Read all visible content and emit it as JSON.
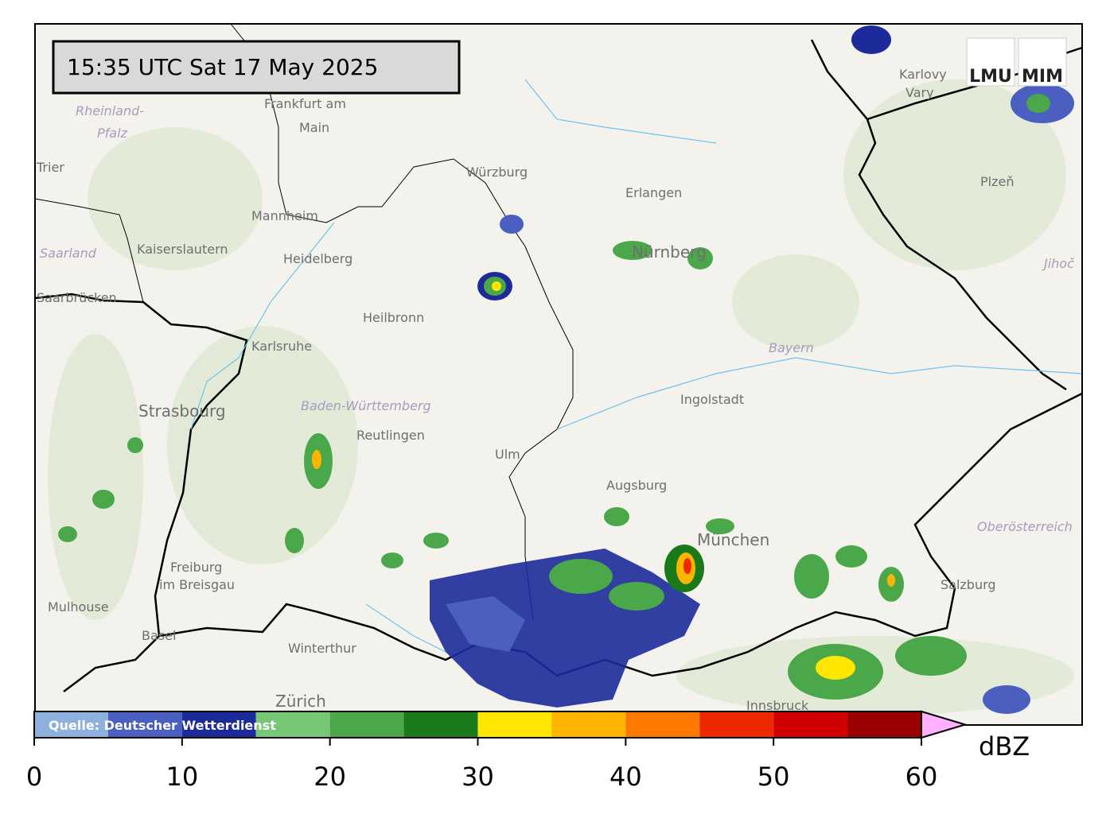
{
  "header": {
    "timestamp": "15:35 UTC  Sat 17 May 2025",
    "logo_left": "LMU",
    "logo_right": "MIM"
  },
  "map": {
    "labels": [
      "Frankfurt am",
      "Main",
      "Rheinland-",
      "Pfalz",
      "Trier",
      "Mannheim",
      "Kaiserslautern",
      "Saarland",
      "Heidelberg",
      "Saarbrücken",
      "Heilbronn",
      "Karlsruhe",
      "Strasbourg",
      "Baden-Württemberg",
      "Reutlingen",
      "Ulm",
      "Augsburg",
      "München",
      "Ingolstadt",
      "Bayern",
      "Würzburg",
      "Erlangen",
      "Nürnberg",
      "Karlovy",
      "Vary",
      "Plzeň",
      "Jihoč",
      "Freiburg",
      "im Breisgau",
      "Mulhouse",
      "Basel",
      "Winterthur",
      "Zürich",
      "Innsbruck",
      "Salzburg",
      "Oberösterreich"
    ]
  },
  "colorbar": {
    "source": "Quelle: Deutscher Wetterdienst",
    "unit": "dBZ",
    "bounds": [
      0,
      5,
      10,
      15,
      20,
      25,
      30,
      35,
      40,
      45,
      50,
      55,
      60
    ],
    "colors": [
      "#8eb0dc",
      "#4a5fbf",
      "#1c2a9a",
      "#76c776",
      "#4aa84a",
      "#1a7a1a",
      "#ffe600",
      "#ffb400",
      "#ff7800",
      "#f02800",
      "#d20000",
      "#9a0000"
    ],
    "extend_color": "#ffb0ff",
    "ticks": [
      0,
      10,
      20,
      30,
      40,
      50,
      60
    ]
  }
}
